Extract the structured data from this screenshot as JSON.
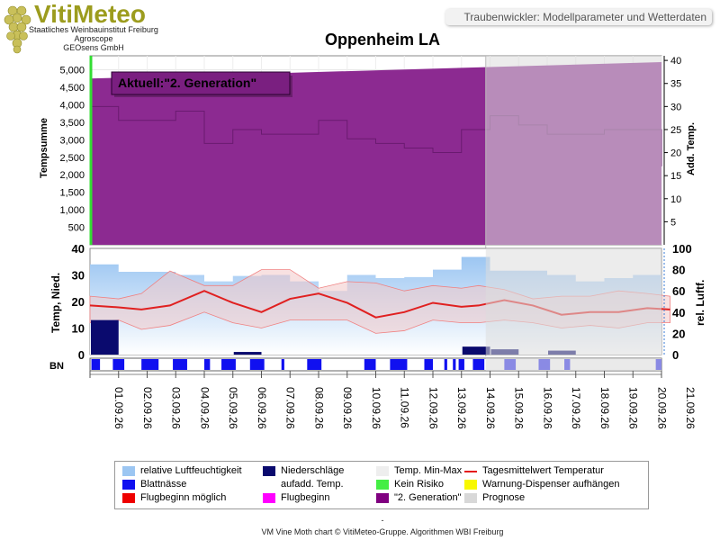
{
  "header": {
    "logo_title": "VitiMeteo",
    "logo_lines": [
      "Staatliches Weinbauinstitut Freiburg",
      "Agroscope",
      "GEOsens GmbH"
    ],
    "page_subtitle": "Traubenwickler: Modellparameter und Wetterdaten"
  },
  "footer": {
    "dash": "-",
    "copyright": "VM Vine Moth chart © VitiMeteo-Gruppe. Algorithmen WBI Freiburg"
  },
  "chart_data": {
    "title": "Oppenheim LA",
    "type": "area",
    "annotation": "Aktuell:\"2. Generation\"",
    "dates": [
      "01.09.26",
      "02.09.26",
      "03.09.26",
      "04.09.26",
      "05.09.26",
      "06.09.26",
      "07.09.26",
      "08.09.26",
      "09.09.26",
      "10.09.26",
      "11.09.26",
      "12.09.26",
      "13.09.26",
      "14.09.26",
      "15.09.26",
      "16.09.26",
      "17.09.26",
      "18.09.26",
      "19.09.26",
      "20.09.26",
      "21.09.26"
    ],
    "forecast_start": "14.09.26",
    "top_panel": {
      "ylabel_left": "Tempsumme",
      "ylabel_right": "Add. Temp.",
      "ylim_left": [
        0,
        5400
      ],
      "yticks_left": [
        500,
        1000,
        1500,
        2000,
        2500,
        3000,
        3500,
        4000,
        4500,
        5000
      ],
      "ylim_right": [
        0,
        41
      ],
      "yticks_right": [
        5,
        10,
        15,
        20,
        25,
        30,
        35,
        40
      ],
      "tempsumme_x": [
        0,
        20
      ],
      "tempsumme_values": [
        4750,
        5220
      ],
      "add_temp": [
        30,
        27,
        27,
        29,
        22,
        25,
        24,
        24,
        27,
        23,
        22,
        21,
        20,
        25,
        28,
        26,
        24,
        24,
        25,
        25,
        17
      ]
    },
    "middle_panel": {
      "ylabel_left": "Temp, Nied.",
      "ylabel_right": "rel. Luftf.",
      "ylim_left": [
        0,
        40
      ],
      "yticks_left": [
        0,
        10,
        20,
        30,
        40
      ],
      "ylim_right": [
        0,
        100
      ],
      "yticks_right": [
        0,
        20,
        40,
        60,
        80,
        100
      ],
      "humidity": [
        85,
        78,
        78,
        75,
        69,
        74,
        75,
        69,
        60,
        75,
        72,
        73,
        80,
        92,
        79,
        79,
        75,
        69,
        72,
        75,
        73
      ],
      "temp_mean": [
        18.5,
        17.8,
        17,
        18.5,
        24,
        19.5,
        16,
        21,
        23,
        19.5,
        14,
        16,
        19.5,
        18,
        18.5,
        20.5,
        18.5,
        15,
        16,
        16,
        17.5,
        17
      ],
      "temp_mean_x": [
        0,
        1,
        1.8,
        2.8,
        4,
        5,
        6,
        7,
        8,
        9,
        10,
        11,
        12,
        13,
        13.6,
        14.5,
        15.5,
        16.5,
        17.5,
        18.5,
        19.5,
        20.3
      ],
      "temp_max": [
        22,
        21,
        23,
        31.5,
        26,
        26,
        32,
        32,
        25,
        27.5,
        27,
        24,
        26,
        25,
        26,
        24.5,
        21,
        22,
        22,
        24,
        23,
        22
      ],
      "temp_min": [
        12,
        13,
        9.5,
        11,
        16,
        12,
        10,
        13,
        13,
        13,
        8,
        9,
        13,
        12,
        12,
        13,
        12,
        10,
        11,
        10,
        12,
        12
      ],
      "precip": [
        13,
        0,
        0,
        0,
        0,
        1,
        0,
        0,
        0,
        0,
        0,
        0,
        0,
        3,
        2,
        0,
        1.5,
        0,
        0,
        0,
        0
      ]
    },
    "bn_label": "BN",
    "bn_segments": [
      [
        0.05,
        0.35
      ],
      [
        0.8,
        1.2
      ],
      [
        1.8,
        2.4
      ],
      [
        2.9,
        3.4
      ],
      [
        4.0,
        4.2
      ],
      [
        4.6,
        5.1
      ],
      [
        5.6,
        6.1
      ],
      [
        6.7,
        6.8
      ],
      [
        7.6,
        8.1
      ],
      [
        9.6,
        10.0
      ],
      [
        10.5,
        11.1
      ],
      [
        11.7,
        12.0
      ],
      [
        12.4,
        12.5
      ],
      [
        12.7,
        12.8
      ],
      [
        12.9,
        13.1
      ],
      [
        13.4,
        13.8
      ],
      [
        14.5,
        14.9
      ],
      [
        15.7,
        16.1
      ],
      [
        16.6,
        16.8
      ],
      [
        19.8,
        20.0
      ]
    ],
    "legend": [
      {
        "label": "relative Luftfeuchtigkeit",
        "color": "#9cc6f2"
      },
      {
        "label": "Niederschläge",
        "color": "#0a0a6e"
      },
      {
        "label": "Temp. Min-Max",
        "color": "#eeeeee"
      },
      {
        "label": "Tagesmittelwert Temperatur",
        "color": "#e41a1a"
      },
      {
        "label": "Blattnässe",
        "color": "#1010f0"
      },
      {
        "label": "aufadd. Temp.",
        "color": "#ffffff"
      },
      {
        "label": "Kein Risiko",
        "color": "#44ee44"
      },
      {
        "label": "Warnung-Dispenser aufhängen",
        "color": "#f8f800"
      },
      {
        "label": "Flugbeginn möglich",
        "color": "#ee0000"
      },
      {
        "label": "Flugbeginn",
        "color": "#ff00ff"
      },
      {
        "label": "\"2. Generation\"",
        "color": "#800080"
      },
      {
        "label": "Prognose",
        "color": "#d8d8d8"
      }
    ],
    "colors": {
      "generation": "#8c2a91",
      "forecast": "#d6d6d6",
      "humidity": "#9cc6f2",
      "temp_mean": "#e02020",
      "temp_band": "#f3c9c9",
      "precip": "#0a0a6e",
      "bn": "#1010f0",
      "addtemp_line": "#6a1a70"
    }
  }
}
